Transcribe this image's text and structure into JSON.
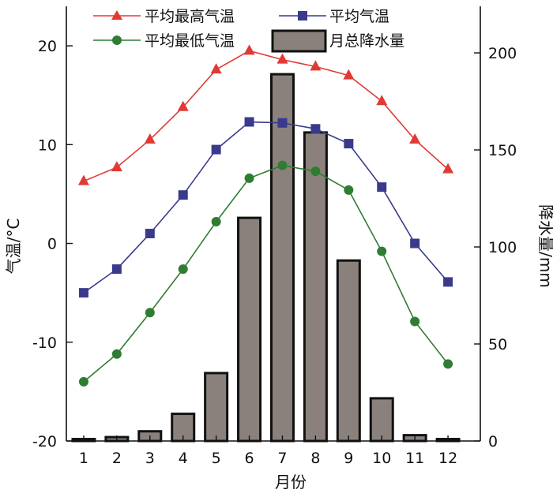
{
  "chart_data": {
    "type": "bar+line",
    "title": "",
    "xlabel": "月份",
    "ylabel_left": "气温/°C",
    "ylabel_right": "降水量/mm",
    "categories": [
      "1",
      "2",
      "3",
      "4",
      "5",
      "6",
      "7",
      "8",
      "9",
      "10",
      "11",
      "12"
    ],
    "ylim_left": [
      -20,
      24
    ],
    "yticks_left": [
      -20,
      -10,
      0,
      10,
      20
    ],
    "yticks_left_labels": [
      "-20",
      "-10",
      "0",
      "10",
      "20"
    ],
    "ylim_right": [
      0,
      224
    ],
    "yticks_right": [
      0,
      50,
      100,
      150,
      200
    ],
    "yticks_right_labels": [
      "0",
      "50",
      "100",
      "150",
      "200"
    ],
    "grid": false,
    "legend": "top",
    "bars": {
      "name": "月总降水量",
      "axis": "right",
      "color": "#8a817c",
      "edge": "#111111",
      "values": [
        1,
        2,
        5,
        14,
        35,
        115,
        189,
        159,
        93,
        22,
        3,
        1
      ]
    },
    "series": [
      {
        "name": "平均最高气温",
        "axis": "left",
        "color": "#e03a34",
        "marker": "triangle",
        "values": [
          6.3,
          7.7,
          10.5,
          13.8,
          17.6,
          19.5,
          18.6,
          17.9,
          17.0,
          14.4,
          10.5,
          7.5
        ]
      },
      {
        "name": "平均气温",
        "axis": "left",
        "color": "#3a3a8c",
        "marker": "square",
        "values": [
          -5.0,
          -2.6,
          1.0,
          4.9,
          9.5,
          12.3,
          12.2,
          11.6,
          10.1,
          5.7,
          0.0,
          -3.9
        ]
      },
      {
        "name": "平均最低气温",
        "axis": "left",
        "color": "#2e7d32",
        "marker": "circle",
        "values": [
          -14.0,
          -11.2,
          -7.0,
          -2.6,
          2.2,
          6.6,
          7.9,
          7.3,
          5.4,
          -0.8,
          -7.9,
          -12.2
        ]
      }
    ]
  }
}
